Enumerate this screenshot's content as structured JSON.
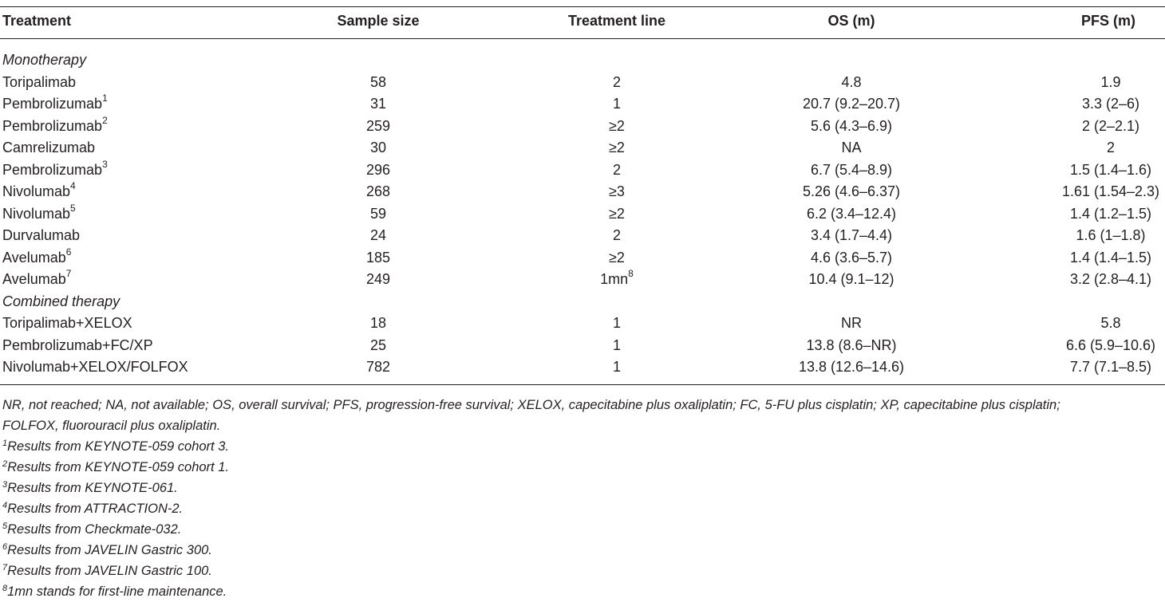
{
  "columns": [
    "Treatment",
    "Sample size",
    "Treatment line",
    "OS (m)",
    "PFS (m)"
  ],
  "sections": [
    {
      "title": "Monotherapy",
      "rows": [
        {
          "treatment": "Toripalimab",
          "sup": "",
          "sample_size": "58",
          "line": "2",
          "line_sup": "",
          "os": "4.8",
          "pfs": "1.9"
        },
        {
          "treatment": "Pembrolizumab",
          "sup": "1",
          "sample_size": "31",
          "line": "1",
          "line_sup": "",
          "os": "20.7 (9.2–20.7)",
          "pfs": "3.3 (2–6)"
        },
        {
          "treatment": "Pembrolizumab",
          "sup": "2",
          "sample_size": "259",
          "line": "≥2",
          "line_sup": "",
          "os": "5.6 (4.3–6.9)",
          "pfs": "2 (2–2.1)"
        },
        {
          "treatment": "Camrelizumab",
          "sup": "",
          "sample_size": "30",
          "line": "≥2",
          "line_sup": "",
          "os": "NA",
          "pfs": "2"
        },
        {
          "treatment": "Pembrolizumab",
          "sup": "3",
          "sample_size": "296",
          "line": "2",
          "line_sup": "",
          "os": "6.7 (5.4–8.9)",
          "pfs": "1.5 (1.4–1.6)"
        },
        {
          "treatment": "Nivolumab",
          "sup": "4",
          "sample_size": "268",
          "line": "≥3",
          "line_sup": "",
          "os": "5.26 (4.6–6.37)",
          "pfs": "1.61 (1.54–2.3)"
        },
        {
          "treatment": "Nivolumab",
          "sup": "5",
          "sample_size": "59",
          "line": "≥2",
          "line_sup": "",
          "os": "6.2 (3.4–12.4)",
          "pfs": "1.4 (1.2–1.5)"
        },
        {
          "treatment": "Durvalumab",
          "sup": "",
          "sample_size": "24",
          "line": "2",
          "line_sup": "",
          "os": "3.4 (1.7–4.4)",
          "pfs": "1.6 (1–1.8)"
        },
        {
          "treatment": "Avelumab",
          "sup": "6",
          "sample_size": "185",
          "line": "≥2",
          "line_sup": "",
          "os": "4.6 (3.6–5.7)",
          "pfs": "1.4 (1.4–1.5)"
        },
        {
          "treatment": "Avelumab",
          "sup": "7",
          "sample_size": "249",
          "line": "1mn",
          "line_sup": "8",
          "os": "10.4 (9.1–12)",
          "pfs": "3.2 (2.8–4.1)"
        }
      ]
    },
    {
      "title": "Combined therapy",
      "rows": [
        {
          "treatment": "Toripalimab+XELOX",
          "sup": "",
          "sample_size": "18",
          "line": "1",
          "line_sup": "",
          "os": "NR",
          "pfs": "5.8"
        },
        {
          "treatment": "Pembrolizumab+FC/XP",
          "sup": "",
          "sample_size": "25",
          "line": "1",
          "line_sup": "",
          "os": "13.8 (8.6–NR)",
          "pfs": "6.6 (5.9–10.6)"
        },
        {
          "treatment": "Nivolumab+XELOX/FOLFOX",
          "sup": "",
          "sample_size": "782",
          "line": "1",
          "line_sup": "",
          "os": "13.8 (12.6–14.6)",
          "pfs": "7.7 (7.1–8.5)"
        }
      ]
    }
  ],
  "footnotes": {
    "abbreviations_line1": "NR, not reached; NA, not available; OS, overall survival; PFS, progression-free survival; XELOX, capecitabine plus oxaliplatin; FC, 5-FU plus cisplatin; XP, capecitabine plus cisplatin;",
    "abbreviations_line2": "FOLFOX, fluorouracil plus oxaliplatin.",
    "notes": [
      {
        "sup": "1",
        "text": "Results from KEYNOTE-059 cohort 3."
      },
      {
        "sup": "2",
        "text": "Results from KEYNOTE-059 cohort 1."
      },
      {
        "sup": "3",
        "text": "Results from KEYNOTE-061."
      },
      {
        "sup": "4",
        "text": "Results from ATTRACTION-2."
      },
      {
        "sup": "5",
        "text": "Results from Checkmate-032."
      },
      {
        "sup": "6",
        "text": "Results from JAVELIN Gastric 300."
      },
      {
        "sup": "7",
        "text": "Results from JAVELIN Gastric 100."
      },
      {
        "sup": "8",
        "text": "1mn stands for first-line maintenance."
      }
    ]
  }
}
